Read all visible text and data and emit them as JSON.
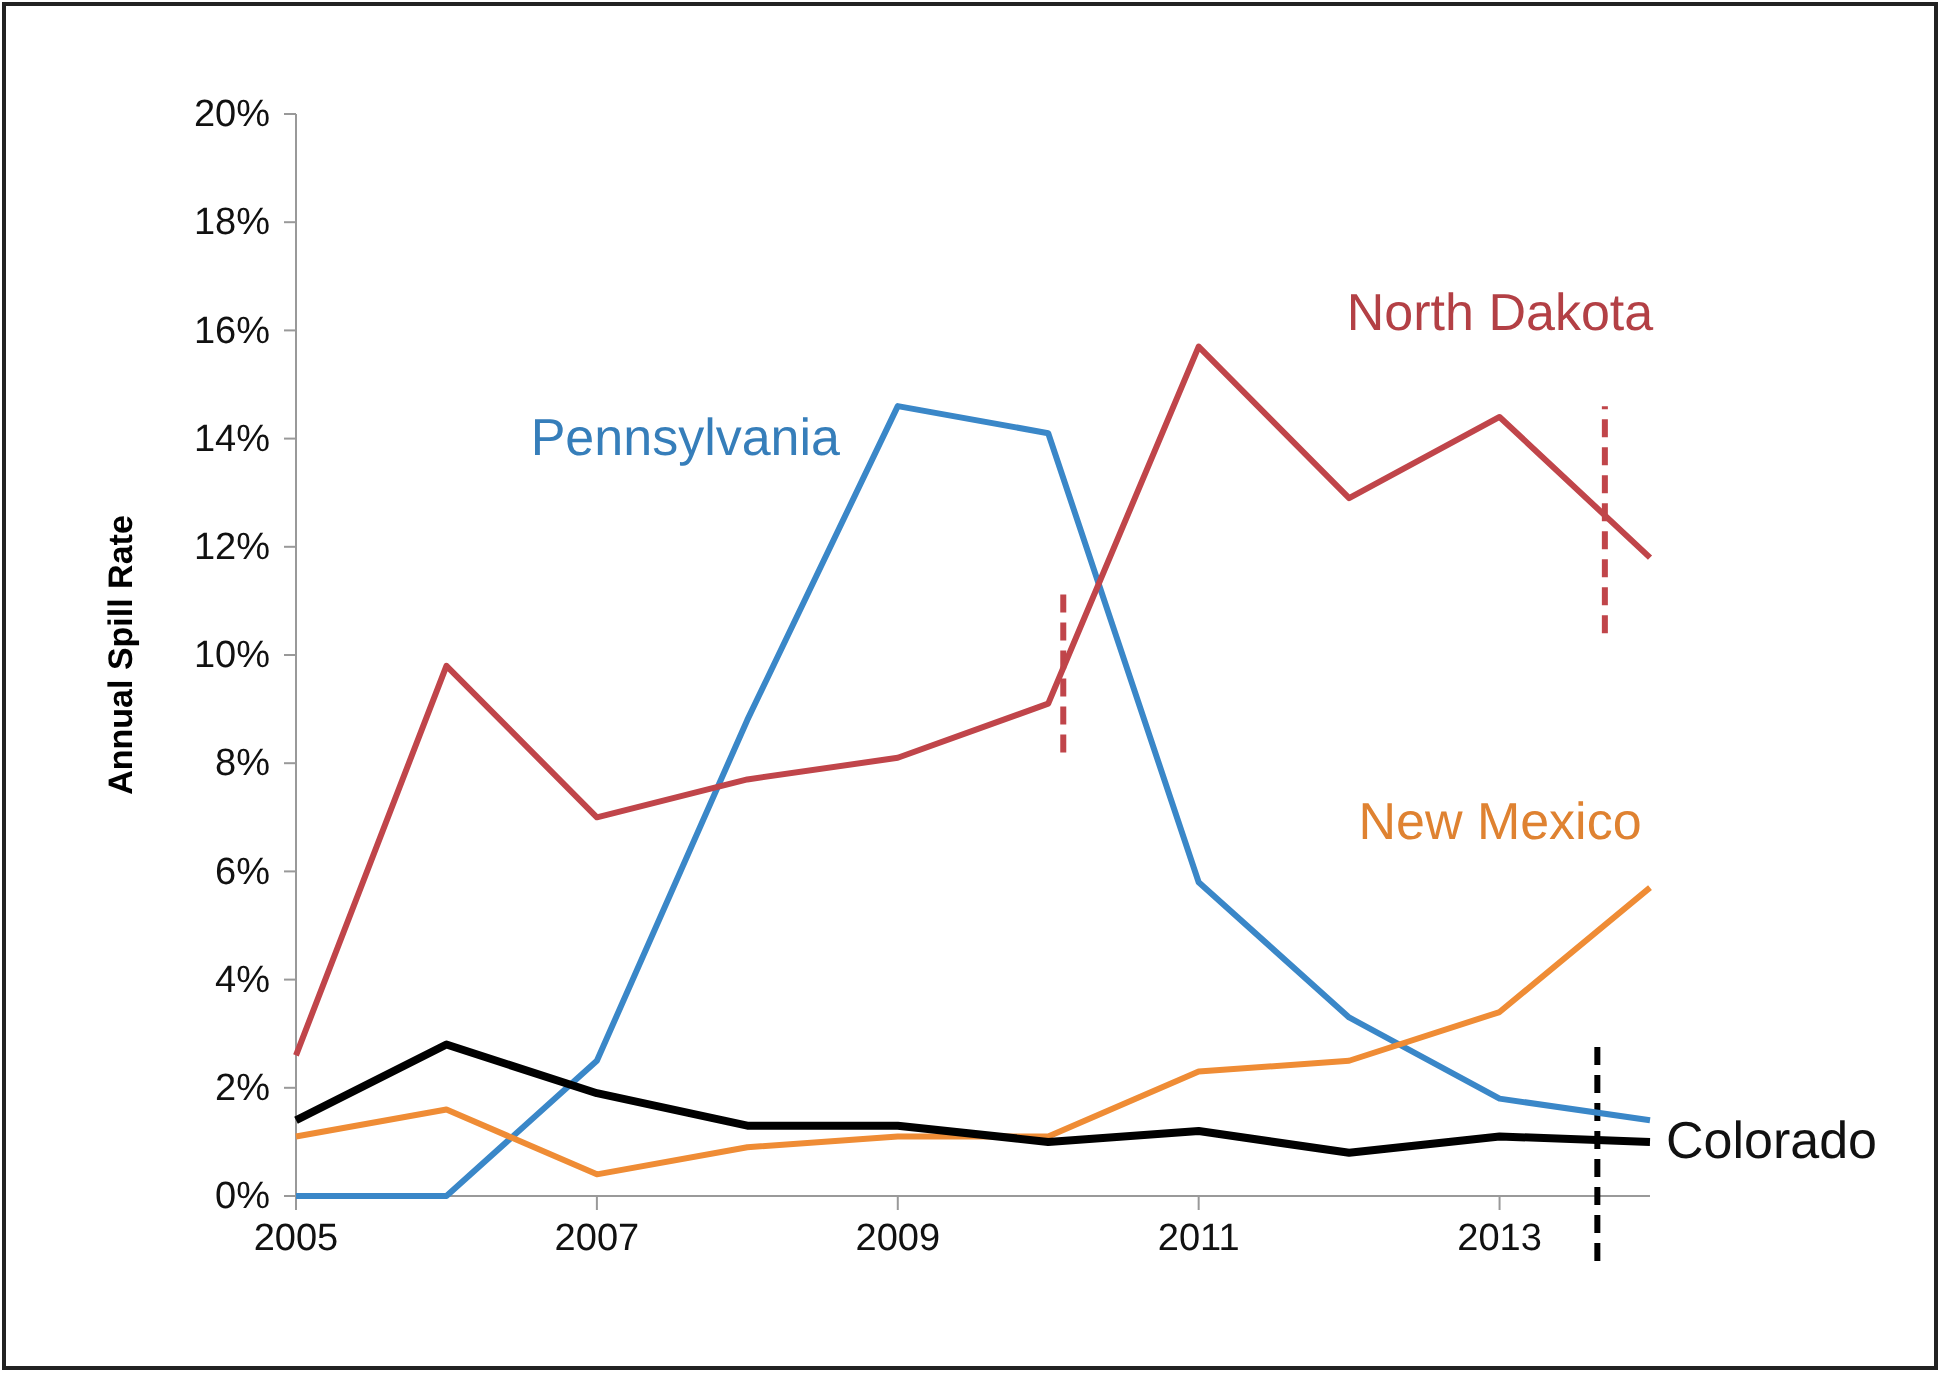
{
  "chart_data": {
    "type": "line",
    "ylabel": "Annual Spill Rate",
    "x": [
      2005,
      2006,
      2007,
      2008,
      2009,
      2010,
      2011,
      2012,
      2013,
      2014
    ],
    "xlim": [
      2005,
      2014
    ],
    "xticks": [
      2005,
      2007,
      2009,
      2011,
      2013
    ],
    "ylim": [
      0,
      20
    ],
    "yticks": [
      {
        "value": 0,
        "label": "0%"
      },
      {
        "value": 2,
        "label": "2%"
      },
      {
        "value": 4,
        "label": "4%"
      },
      {
        "value": 6,
        "label": "6%"
      },
      {
        "value": 8,
        "label": "8%"
      },
      {
        "value": 10,
        "label": "10%"
      },
      {
        "value": 12,
        "label": "12%"
      },
      {
        "value": 14,
        "label": "14%"
      },
      {
        "value": 16,
        "label": "16%"
      },
      {
        "value": 18,
        "label": "18%"
      },
      {
        "value": 20,
        "label": "20%"
      }
    ],
    "legend": false,
    "grid": false,
    "series": [
      {
        "name": "Pennsylvania",
        "color": "#3a87c8",
        "values": [
          0,
          0,
          2.5,
          8.8,
          14.6,
          14.1,
          5.8,
          3.3,
          1.8,
          1.4
        ]
      },
      {
        "name": "North Dakota",
        "color": "#c0454a",
        "values": [
          2.6,
          9.8,
          7.0,
          7.7,
          8.1,
          9.1,
          15.7,
          12.9,
          14.4,
          11.8
        ]
      },
      {
        "name": "New Mexico",
        "color": "#ef8c35",
        "values": [
          1.1,
          1.6,
          0.4,
          0.9,
          1.1,
          1.1,
          2.3,
          2.5,
          3.4,
          5.7
        ]
      },
      {
        "name": "Colorado",
        "color": "#000000",
        "values": [
          1.4,
          2.8,
          1.9,
          1.3,
          1.3,
          1.0,
          1.2,
          0.8,
          1.1,
          1.0
        ]
      }
    ]
  }
}
